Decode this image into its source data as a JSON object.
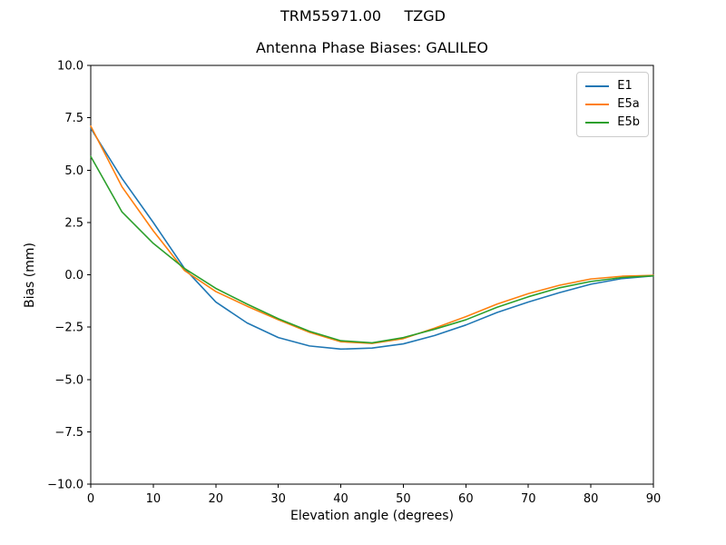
{
  "page": {
    "suptitle": "TRM55971.00     TZGD"
  },
  "chart_data": {
    "type": "line",
    "title": "Antenna Phase Biases: GALILEO",
    "xlabel": "Elevation angle (degrees)",
    "ylabel": "Bias (mm)",
    "xlim": [
      0,
      90
    ],
    "ylim": [
      -10,
      10
    ],
    "xticks": [
      0,
      10,
      20,
      30,
      40,
      50,
      60,
      70,
      80,
      90
    ],
    "yticks": [
      -10,
      -7.5,
      -5,
      -2.5,
      0,
      2.5,
      5,
      7.5,
      10
    ],
    "grid": false,
    "legend_position": "upper right",
    "x": [
      0,
      5,
      10,
      15,
      20,
      25,
      30,
      35,
      40,
      45,
      50,
      55,
      60,
      65,
      70,
      75,
      80,
      85,
      90
    ],
    "series": [
      {
        "name": "E1",
        "color": "#1f77b4",
        "values": [
          7.0,
          4.6,
          2.5,
          0.3,
          -1.3,
          -2.3,
          -3.0,
          -3.4,
          -3.55,
          -3.5,
          -3.3,
          -2.9,
          -2.4,
          -1.8,
          -1.3,
          -0.85,
          -0.45,
          -0.18,
          -0.05
        ]
      },
      {
        "name": "E5a",
        "color": "#ff7f0e",
        "values": [
          7.1,
          4.2,
          2.1,
          0.2,
          -0.8,
          -1.5,
          -2.15,
          -2.75,
          -3.2,
          -3.28,
          -3.05,
          -2.55,
          -2.0,
          -1.4,
          -0.9,
          -0.5,
          -0.2,
          -0.07,
          -0.03
        ]
      },
      {
        "name": "E5b",
        "color": "#2ca02c",
        "values": [
          5.65,
          3.0,
          1.5,
          0.3,
          -0.65,
          -1.4,
          -2.1,
          -2.7,
          -3.15,
          -3.25,
          -3.0,
          -2.6,
          -2.15,
          -1.55,
          -1.05,
          -0.62,
          -0.32,
          -0.13,
          -0.05
        ]
      }
    ]
  }
}
